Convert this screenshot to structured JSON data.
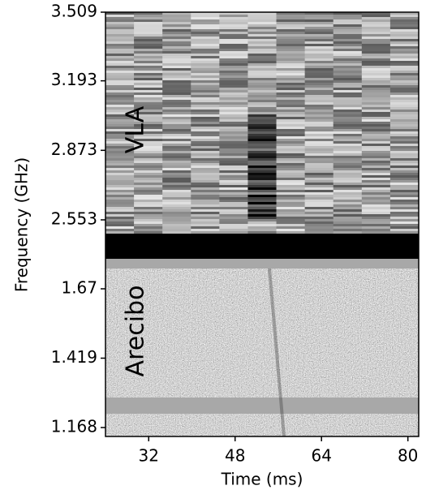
{
  "chart_data": [
    {
      "type": "heatmap",
      "annotation": "VLA",
      "ylabel": "Frequency (GHz)",
      "ylim": [
        3.509,
        2.4895
      ],
      "yticks": [
        3.509,
        3.193,
        2.873,
        2.553
      ]
    },
    {
      "type": "heatmap",
      "annotation": "Arecibo",
      "xlabel": "Time (ms)",
      "xlim": [
        24,
        82
      ],
      "xticks": [
        32,
        48,
        64,
        80
      ],
      "ylim": [
        1.7786,
        1.1357
      ],
      "yticks": [
        1.67,
        1.419,
        1.168
      ]
    }
  ]
}
